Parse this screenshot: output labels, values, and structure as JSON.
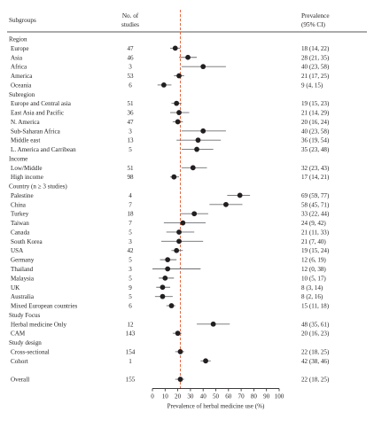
{
  "chart_data": {
    "type": "forest",
    "header": {
      "subgroups": "Subgroups",
      "studies_line1": "No. of",
      "studies_line2": "studies",
      "prevalence_line1": "Prevalence",
      "prevalence_line2": "(95% CI)"
    },
    "xlabel": "Prevalence of herbal medicine use (%)",
    "xlim": [
      0,
      100
    ],
    "xticks": [
      "0",
      "10",
      "20",
      "30",
      "40",
      "50",
      "60",
      "70",
      "80",
      "90",
      "100"
    ],
    "reference_line": 22,
    "rows": [
      {
        "kind": "heading",
        "label": "Region"
      },
      {
        "kind": "data",
        "label": "Europe",
        "n": "47",
        "ci_text": "18 (14, 22)",
        "est": 18,
        "lo": 14,
        "hi": 22
      },
      {
        "kind": "data",
        "label": "Asia",
        "n": "46",
        "ci_text": "28 (21, 35)",
        "est": 28,
        "lo": 21,
        "hi": 35
      },
      {
        "kind": "data",
        "label": "Africa",
        "n": "3",
        "ci_text": "40 (23, 58)",
        "est": 40,
        "lo": 23,
        "hi": 58
      },
      {
        "kind": "data",
        "label": "America",
        "n": "53",
        "ci_text": "21 (17, 25)",
        "est": 21,
        "lo": 17,
        "hi": 25
      },
      {
        "kind": "data",
        "label": "Oceania",
        "n": "6",
        "ci_text": "9 (4, 15)",
        "est": 9,
        "lo": 4,
        "hi": 15
      },
      {
        "kind": "heading",
        "label": "Subregion"
      },
      {
        "kind": "data",
        "label": "Europe and Central asia",
        "n": "51",
        "ci_text": "19 (15, 23)",
        "est": 19,
        "lo": 15,
        "hi": 23
      },
      {
        "kind": "data",
        "label": "East Asia and Pacific",
        "n": "36",
        "ci_text": "21 (14, 29)",
        "est": 21,
        "lo": 14,
        "hi": 29
      },
      {
        "kind": "data",
        "label": "N. America",
        "n": "47",
        "ci_text": "20 (16, 24)",
        "est": 20,
        "lo": 16,
        "hi": 24
      },
      {
        "kind": "data",
        "label": "Sub-Saharan Africa",
        "n": "3",
        "ci_text": "40 (23, 58)",
        "est": 40,
        "lo": 23,
        "hi": 58
      },
      {
        "kind": "data",
        "label": "Middle east",
        "n": "13",
        "ci_text": "36 (19, 54)",
        "est": 36,
        "lo": 19,
        "hi": 54
      },
      {
        "kind": "data",
        "label": "L. America and Carribean",
        "n": "5",
        "ci_text": "35 (23, 48)",
        "est": 35,
        "lo": 23,
        "hi": 48
      },
      {
        "kind": "heading",
        "label": "Income"
      },
      {
        "kind": "data",
        "label": "Low/Middle",
        "n": "51",
        "ci_text": "32 (23, 43)",
        "est": 32,
        "lo": 23,
        "hi": 43
      },
      {
        "kind": "data",
        "label": "High income",
        "n": "98",
        "ci_text": "17 (14, 21)",
        "est": 17,
        "lo": 14,
        "hi": 21
      },
      {
        "kind": "heading",
        "label": "Country (n ≥ 3 studies)"
      },
      {
        "kind": "data",
        "label": "Palestine",
        "n": "4",
        "ci_text": "69 (59, 77)",
        "est": 69,
        "lo": 59,
        "hi": 77
      },
      {
        "kind": "data",
        "label": "China",
        "n": "7",
        "ci_text": "58 (45, 71)",
        "est": 58,
        "lo": 45,
        "hi": 71
      },
      {
        "kind": "data",
        "label": "Turkey",
        "n": "18",
        "ci_text": "33 (22, 44)",
        "est": 33,
        "lo": 22,
        "hi": 44
      },
      {
        "kind": "data",
        "label": "Taiwan",
        "n": "7",
        "ci_text": "24 (9, 42)",
        "est": 24,
        "lo": 9,
        "hi": 42
      },
      {
        "kind": "data",
        "label": "Canada",
        "n": "5",
        "ci_text": "21 (11, 33)",
        "est": 21,
        "lo": 11,
        "hi": 33
      },
      {
        "kind": "data",
        "label": "South Korea",
        "n": "3",
        "ci_text": "21 (7, 40)",
        "est": 21,
        "lo": 7,
        "hi": 40
      },
      {
        "kind": "data",
        "label": "USA",
        "n": "42",
        "ci_text": "19 (15, 24)",
        "est": 19,
        "lo": 15,
        "hi": 24
      },
      {
        "kind": "data",
        "label": "Germany",
        "n": "5",
        "ci_text": "12 (6, 19)",
        "est": 12,
        "lo": 6,
        "hi": 19
      },
      {
        "kind": "data",
        "label": "Thailand",
        "n": "3",
        "ci_text": "12 (0, 38)",
        "est": 12,
        "lo": 0,
        "hi": 38
      },
      {
        "kind": "data",
        "label": "Malaysia",
        "n": "5",
        "ci_text": "10 (5, 17)",
        "est": 10,
        "lo": 5,
        "hi": 17
      },
      {
        "kind": "data",
        "label": "UK",
        "n": "9",
        "ci_text": "8 (3, 14)",
        "est": 8,
        "lo": 3,
        "hi": 14
      },
      {
        "kind": "data",
        "label": "Australia",
        "n": "5",
        "ci_text": "8 (2, 16)",
        "est": 8,
        "lo": 2,
        "hi": 16
      },
      {
        "kind": "data",
        "label": "Mixed European countries",
        "n": "6",
        "ci_text": "15 (11, 18)",
        "est": 15,
        "lo": 11,
        "hi": 18
      },
      {
        "kind": "heading",
        "label": "Study Focus"
      },
      {
        "kind": "data",
        "label": "Herbal medicine Only",
        "n": "12",
        "ci_text": "48 (35, 61)",
        "est": 48,
        "lo": 35,
        "hi": 61
      },
      {
        "kind": "data",
        "label": "CAM",
        "n": "143",
        "ci_text": "20 (16, 23)",
        "est": 20,
        "lo": 16,
        "hi": 23
      },
      {
        "kind": "heading",
        "label": "Study design"
      },
      {
        "kind": "data",
        "label": "Cross-sectional",
        "n": "154",
        "ci_text": "22 (18, 25)",
        "est": 22,
        "lo": 18,
        "hi": 25
      },
      {
        "kind": "data",
        "label": "Cohort",
        "n": "1",
        "ci_text": "42 (38, 46)",
        "est": 42,
        "lo": 38,
        "hi": 46
      },
      {
        "kind": "gap"
      },
      {
        "kind": "data",
        "label": "Overall",
        "n": "155",
        "ci_text": "22 (18, 25)",
        "est": 22,
        "lo": 18,
        "hi": 25
      }
    ],
    "colors": {
      "text": "#231f20",
      "point": "#231f20",
      "ci_line": "#6d6e71",
      "reference": "#e8572a",
      "rule": "#231f20"
    }
  }
}
